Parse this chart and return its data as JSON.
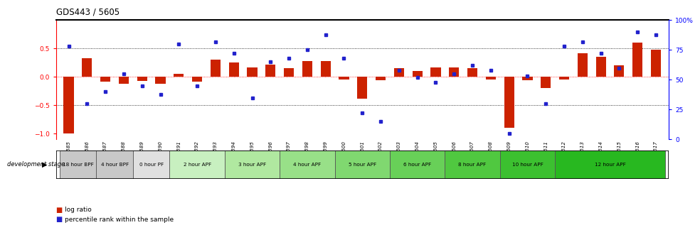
{
  "title": "GDS443 / 5605",
  "samples": [
    "GSM4585",
    "GSM4586",
    "GSM4587",
    "GSM4588",
    "GSM4589",
    "GSM4590",
    "GSM4591",
    "GSM4592",
    "GSM4593",
    "GSM4594",
    "GSM4595",
    "GSM4596",
    "GSM4597",
    "GSM4598",
    "GSM4599",
    "GSM4600",
    "GSM4601",
    "GSM4602",
    "GSM4603",
    "GSM4604",
    "GSM4605",
    "GSM4606",
    "GSM4607",
    "GSM4608",
    "GSM4609",
    "GSM4610",
    "GSM4611",
    "GSM4612",
    "GSM4613",
    "GSM4614",
    "GSM4615",
    "GSM4616",
    "GSM4617"
  ],
  "log_ratio": [
    -1.0,
    0.33,
    -0.08,
    -0.12,
    -0.07,
    -0.12,
    0.05,
    -0.08,
    0.3,
    0.25,
    0.17,
    0.22,
    0.15,
    0.28,
    0.28,
    -0.04,
    -0.38,
    -0.06,
    0.15,
    0.1,
    0.17,
    0.17,
    0.15,
    -0.05,
    -0.9,
    -0.06,
    -0.2,
    -0.05,
    0.42,
    0.35,
    0.2,
    0.6,
    0.48
  ],
  "percentile_pct": [
    78,
    30,
    40,
    55,
    45,
    38,
    80,
    45,
    82,
    72,
    35,
    65,
    68,
    75,
    88,
    68,
    22,
    15,
    58,
    52,
    48,
    55,
    62,
    58,
    5,
    53,
    30,
    78,
    82,
    72,
    60,
    90,
    88
  ],
  "stage_groups": [
    {
      "label": "18 hour BPF",
      "start": 0,
      "end": 2,
      "color": "#c8c8c8"
    },
    {
      "label": "4 hour BPF",
      "start": 2,
      "end": 4,
      "color": "#c8c8c8"
    },
    {
      "label": "0 hour PF",
      "start": 4,
      "end": 6,
      "color": "#e0e0e0"
    },
    {
      "label": "2 hour APF",
      "start": 6,
      "end": 9,
      "color": "#c8f0c0"
    },
    {
      "label": "3 hour APF",
      "start": 9,
      "end": 12,
      "color": "#b0e8a0"
    },
    {
      "label": "4 hour APF",
      "start": 12,
      "end": 15,
      "color": "#98e088"
    },
    {
      "label": "5 hour APF",
      "start": 15,
      "end": 18,
      "color": "#80d870"
    },
    {
      "label": "6 hour APF",
      "start": 18,
      "end": 21,
      "color": "#68d058"
    },
    {
      "label": "8 hour APF",
      "start": 21,
      "end": 24,
      "color": "#50c840"
    },
    {
      "label": "10 hour APF",
      "start": 24,
      "end": 27,
      "color": "#3cc030"
    },
    {
      "label": "12 hour APF",
      "start": 27,
      "end": 33,
      "color": "#28b820"
    }
  ],
  "bar_color": "#cc2200",
  "square_color": "#2222cc",
  "ylim_left": [
    -1.1,
    1.0
  ],
  "ylim_right": [
    0,
    100
  ],
  "yticks_left": [
    -1.0,
    -0.5,
    0.0,
    0.5
  ],
  "yticks_right": [
    0,
    25,
    50,
    75,
    100
  ],
  "hline_dotted": [
    0.5,
    -0.5
  ],
  "hline_red_dotted": [
    0.0
  ]
}
